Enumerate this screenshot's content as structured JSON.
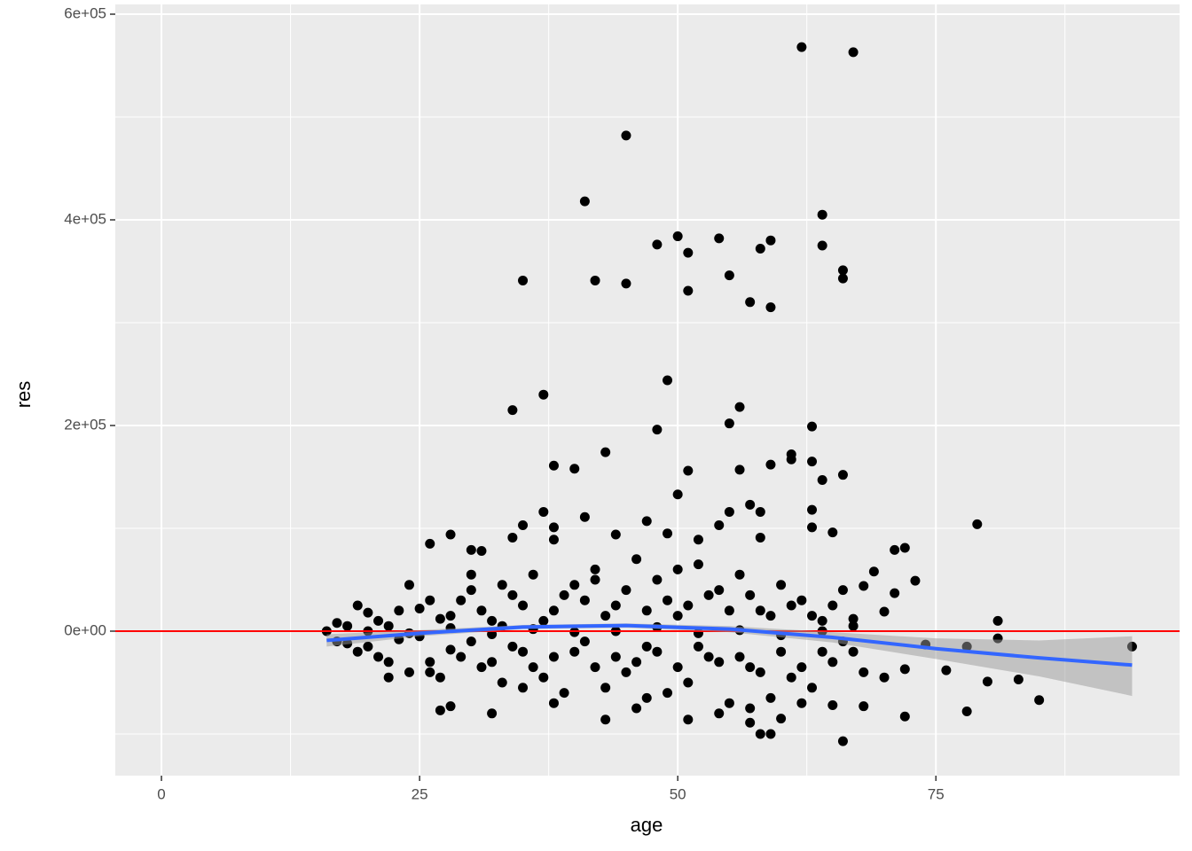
{
  "chart_data": {
    "type": "scatter",
    "x_label": "age",
    "y_label": "res",
    "xlim": [
      -4.47,
      98.6
    ],
    "ylim": [
      -140517,
      609483
    ],
    "xticks": [
      0,
      25,
      50,
      75
    ],
    "yticks": [
      {
        "value": 0,
        "label": "0e+00"
      },
      {
        "value": 200000,
        "label": "2e+05"
      },
      {
        "value": 400000,
        "label": "4e+05"
      },
      {
        "value": 600000,
        "label": "6e+05"
      }
    ],
    "x_minor_ticks": [
      12.5,
      37.5,
      62.5,
      87.5
    ],
    "y_minor_ticks": [
      -100000,
      100000,
      300000,
      500000
    ],
    "grid": true,
    "point_color": "#000000",
    "hline": 0,
    "hline_color": "#ff0000",
    "smooth": {
      "color": "#3366ff",
      "band_color": "#999999",
      "x": [
        16,
        25,
        35,
        45,
        55,
        65,
        75,
        85,
        94
      ],
      "values": [
        -9000,
        -2000,
        4000,
        5500,
        2000,
        -6000,
        -17000,
        -26000,
        -33000
      ],
      "lower": [
        -15000,
        -5000,
        2000,
        3500,
        -1000,
        -11000,
        -27000,
        -44000,
        -63000
      ],
      "upper": [
        -3000,
        1000,
        6000,
        7500,
        5000,
        -1000,
        -7000,
        -9000,
        -5000
      ]
    },
    "x": [
      62,
      67,
      45,
      41,
      64,
      50,
      54,
      59,
      48,
      64,
      58,
      51,
      66,
      35,
      42,
      55,
      66,
      45,
      51,
      57,
      59,
      49,
      37,
      34,
      56,
      55,
      63,
      48,
      43,
      61,
      61,
      59,
      63,
      38,
      40,
      51,
      56,
      66,
      64,
      50,
      57,
      37,
      63,
      79,
      66,
      58,
      59,
      57,
      43,
      51,
      32,
      27,
      28,
      78,
      85,
      94,
      81,
      81,
      80,
      83,
      72,
      73,
      71,
      69,
      26,
      28,
      30,
      31,
      34,
      35,
      41,
      47,
      44,
      38,
      38,
      49,
      52,
      54,
      55,
      58,
      58,
      63,
      65,
      71,
      68,
      67,
      70,
      74,
      76,
      78,
      72,
      70,
      68,
      72,
      65,
      16,
      17,
      18,
      19,
      19,
      20,
      21,
      22,
      23,
      24,
      24,
      25,
      26,
      27,
      28,
      29,
      30,
      31,
      32,
      33,
      34,
      35,
      36,
      37,
      38,
      39,
      40,
      41,
      42,
      43,
      44,
      45,
      46,
      47,
      48,
      49,
      50,
      51,
      52,
      53,
      54,
      55,
      56,
      57,
      58,
      59,
      60,
      61,
      62,
      63,
      64,
      65,
      66,
      67,
      68,
      17,
      18,
      20,
      21,
      22,
      23,
      25,
      26,
      27,
      28,
      29,
      30,
      31,
      32,
      33,
      34,
      35,
      36,
      37,
      38,
      39,
      40,
      41,
      42,
      43,
      44,
      45,
      46,
      47,
      48,
      49,
      50,
      51,
      52,
      53,
      54,
      55,
      56,
      57,
      58,
      59,
      60,
      61,
      62,
      63,
      64,
      65,
      66,
      67,
      20,
      24,
      28,
      32,
      36,
      40,
      44,
      48,
      52,
      56,
      60,
      64,
      30,
      38,
      46,
      54,
      60,
      35,
      42,
      50,
      57,
      62,
      47,
      33,
      26,
      22
    ],
    "values": [
      568000,
      563000,
      482000,
      418000,
      405000,
      384000,
      382000,
      380000,
      376000,
      375000,
      372000,
      368000,
      351000,
      341000,
      341000,
      346000,
      343000,
      338000,
      331000,
      320000,
      315000,
      244000,
      230000,
      215000,
      218000,
      202000,
      199000,
      196000,
      174000,
      172000,
      167000,
      162000,
      165000,
      161000,
      158000,
      156000,
      157000,
      152000,
      147000,
      133000,
      123000,
      116000,
      118000,
      104000,
      -107000,
      -100000,
      -100000,
      -89000,
      -86000,
      -86000,
      -80000,
      -77000,
      -73000,
      -78000,
      -67000,
      -15000,
      10000,
      -7000,
      -49000,
      -47000,
      81000,
      49000,
      79000,
      58000,
      85000,
      94000,
      79000,
      78000,
      91000,
      103000,
      111000,
      107000,
      94000,
      101000,
      89000,
      95000,
      89000,
      103000,
      116000,
      116000,
      91000,
      101000,
      96000,
      37000,
      44000,
      12000,
      19000,
      -13000,
      -38000,
      -15000,
      -37000,
      -45000,
      -73000,
      -83000,
      -72000,
      0,
      -10000,
      5000,
      -20000,
      25000,
      -15000,
      10000,
      -30000,
      20000,
      -40000,
      45000,
      -5000,
      30000,
      -45000,
      15000,
      -25000,
      40000,
      -35000,
      10000,
      -50000,
      35000,
      -20000,
      55000,
      -45000,
      20000,
      -60000,
      45000,
      -10000,
      60000,
      -55000,
      25000,
      -40000,
      70000,
      -15000,
      50000,
      -60000,
      15000,
      -50000,
      65000,
      -25000,
      40000,
      -70000,
      55000,
      -35000,
      20000,
      -65000,
      45000,
      -45000,
      30000,
      -55000,
      10000,
      -30000,
      40000,
      -20000,
      -40000,
      8000,
      -12000,
      18000,
      -25000,
      5000,
      -8000,
      22000,
      -30000,
      12000,
      -18000,
      30000,
      -10000,
      20000,
      -30000,
      5000,
      -15000,
      25000,
      -35000,
      10000,
      -25000,
      35000,
      -20000,
      30000,
      -35000,
      15000,
      -25000,
      40000,
      -30000,
      20000,
      -20000,
      30000,
      -35000,
      25000,
      -15000,
      35000,
      -30000,
      20000,
      -25000,
      35000,
      -40000,
      15000,
      -20000,
      25000,
      -35000,
      15000,
      -20000,
      25000,
      -10000,
      5000,
      0,
      -2000,
      3000,
      -3000,
      2000,
      -1000,
      0,
      4000,
      -2000,
      1000,
      -4000,
      0,
      55000,
      -70000,
      -75000,
      -80000,
      -85000,
      -55000,
      50000,
      60000,
      -75000,
      -70000,
      -65000,
      45000,
      -40000,
      -45000
    ]
  }
}
